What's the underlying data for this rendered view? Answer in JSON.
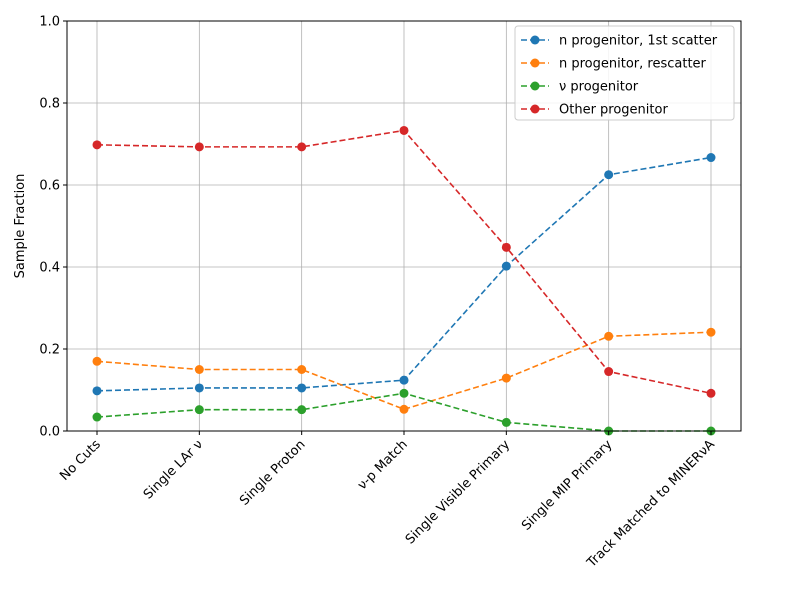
{
  "chart_data": {
    "type": "line",
    "title": "",
    "xlabel": "",
    "ylabel": "Sample Fraction",
    "ylim": [
      0,
      1.0
    ],
    "yticks": [
      "0.0",
      "0.2",
      "0.4",
      "0.6",
      "0.8",
      "1.0"
    ],
    "grid": true,
    "legend_position": "top-right",
    "categories": [
      "No Cuts",
      "Single LAr ν",
      "Single Proton",
      "ν-p Match",
      "Single Visible Primary",
      "Single MIP Primary",
      "Track Matched to MINERνA"
    ],
    "series": [
      {
        "name": "n progenitor, 1st scatter",
        "color": "#1f77b4",
        "values": [
          0.098,
          0.105,
          0.105,
          0.124,
          0.402,
          0.625,
          0.667
        ]
      },
      {
        "name": "n progenitor, rescatter",
        "color": "#ff7f0e",
        "values": [
          0.17,
          0.15,
          0.15,
          0.053,
          0.129,
          0.231,
          0.241
        ]
      },
      {
        "name": "ν progenitor",
        "color": "#2ca02c",
        "values": [
          0.034,
          0.052,
          0.052,
          0.092,
          0.021,
          0.0,
          0.0
        ]
      },
      {
        "name": "Other progenitor",
        "color": "#d62728",
        "values": [
          0.698,
          0.693,
          0.693,
          0.733,
          0.448,
          0.145,
          0.092
        ]
      }
    ]
  }
}
